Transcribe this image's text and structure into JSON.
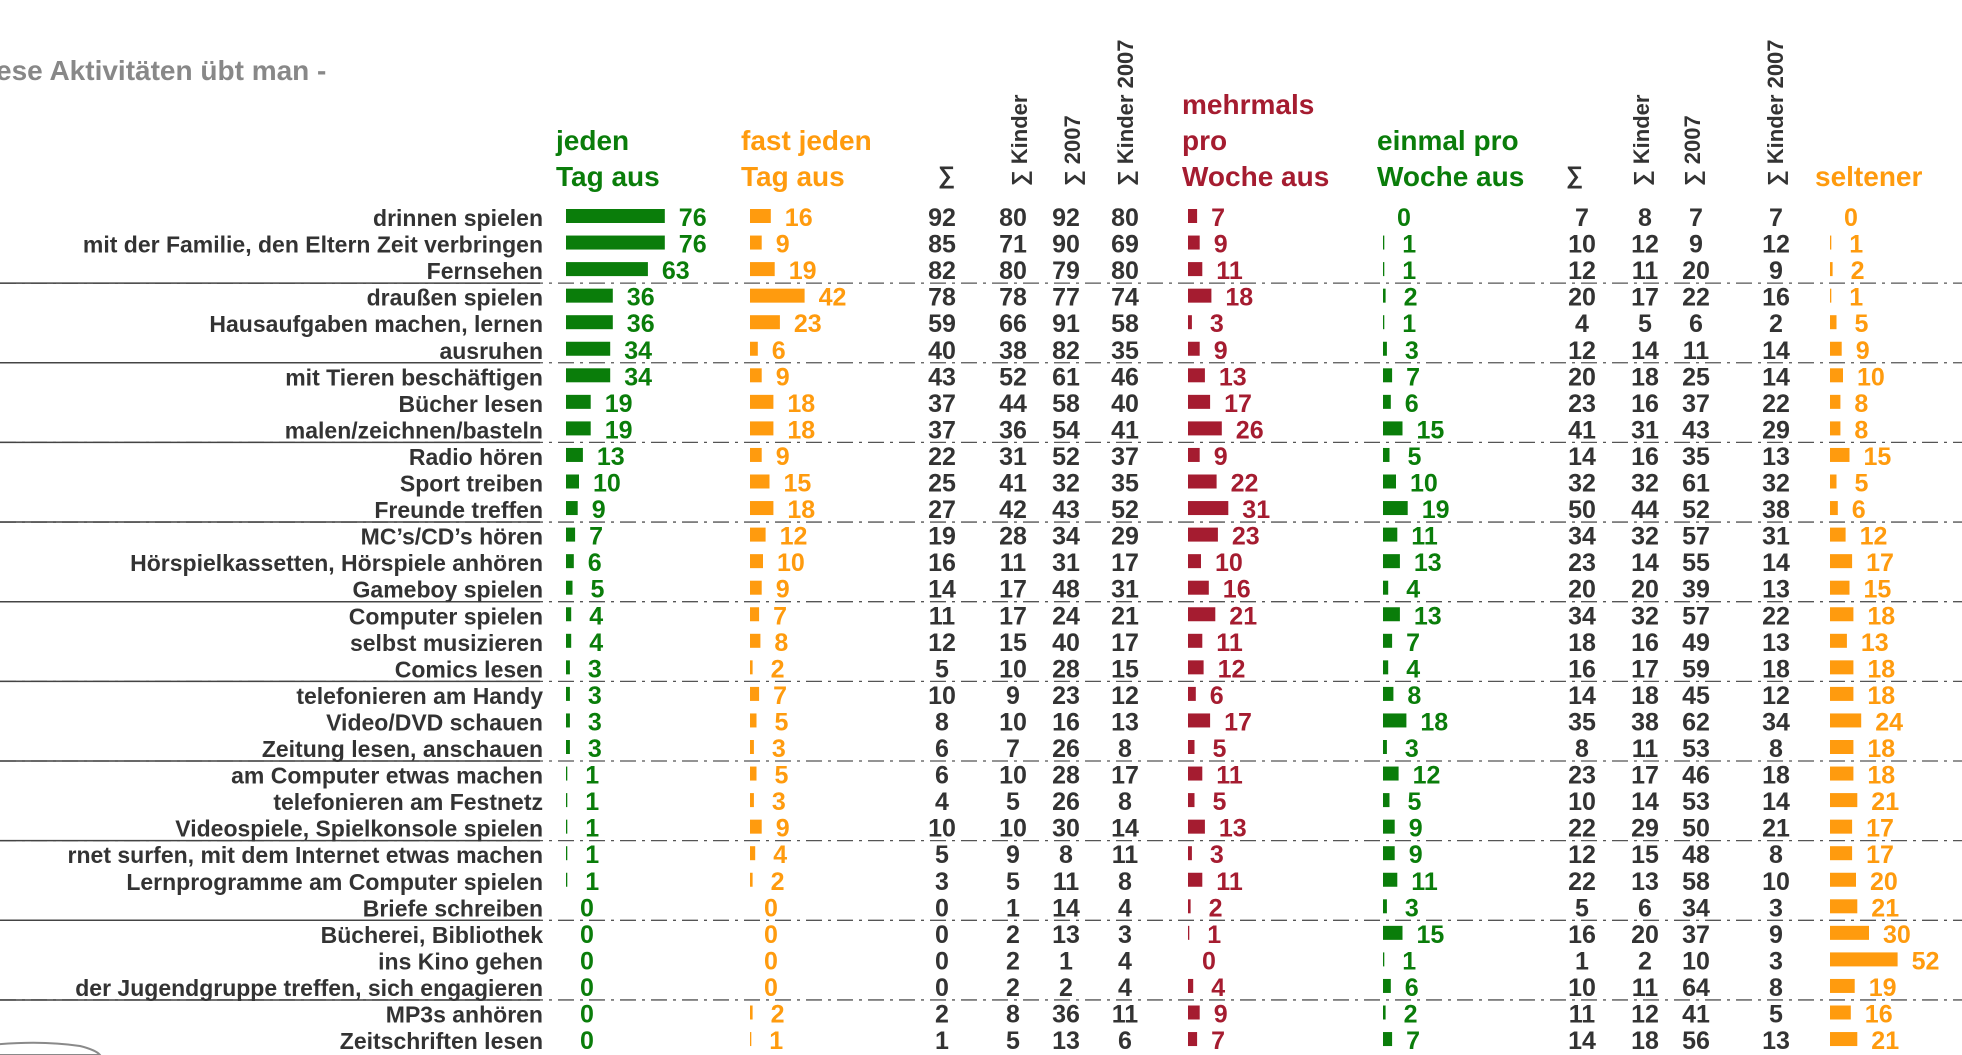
{
  "title": "ese Aktivitäten übt man -",
  "colors": {
    "green": "#0a7d0a",
    "orange": "#ff9b0e",
    "red": "#a51c30",
    "gray": "#333333",
    "title_gray": "#888888"
  },
  "headers": {
    "green1": [
      "jeden",
      "Tag aus"
    ],
    "orange1": [
      "fast jeden",
      "Tag aus"
    ],
    "sum1": "∑",
    "sum_kinder1": "∑ Kinder",
    "sum_2007_1": "∑ 2007",
    "sum_kinder2007_1": "∑ Kinder 2007",
    "red": [
      "mehrmals",
      "pro",
      "Woche aus"
    ],
    "green2": [
      "einmal pro",
      "Woche aus"
    ],
    "sum2": "∑",
    "sum_kinder2": "∑ Kinder",
    "sum_2007_2": "∑ 2007",
    "sum_kinder2007_2": "∑ Kinder 2007",
    "orange2": "seltener"
  },
  "chart_data": {
    "type": "bar",
    "underlined_rows": [
      2,
      5,
      8,
      11,
      14,
      17,
      20,
      23,
      26,
      29,
      32
    ],
    "rows": [
      {
        "label": "drinnen spielen",
        "daily": 76,
        "almost_daily": 16,
        "sum1": 92,
        "kinder1": 80,
        "y2007_1": 92,
        "kinder2007_1": 80,
        "several_weekly": 7,
        "once_weekly": 0,
        "sum2": 7,
        "kinder2": 8,
        "y2007_2": 7,
        "kinder2007_2": 7,
        "rarely": 0
      },
      {
        "label": "mit der Familie, den Eltern Zeit verbringen",
        "daily": 76,
        "almost_daily": 9,
        "sum1": 85,
        "kinder1": 71,
        "y2007_1": 90,
        "kinder2007_1": 69,
        "several_weekly": 9,
        "once_weekly": 1,
        "sum2": 10,
        "kinder2": 12,
        "y2007_2": 9,
        "kinder2007_2": 12,
        "rarely": 1
      },
      {
        "label": "Fernsehen",
        "daily": 63,
        "almost_daily": 19,
        "sum1": 82,
        "kinder1": 80,
        "y2007_1": 79,
        "kinder2007_1": 80,
        "several_weekly": 11,
        "once_weekly": 1,
        "sum2": 12,
        "kinder2": 11,
        "y2007_2": 20,
        "kinder2007_2": 9,
        "rarely": 2
      },
      {
        "label": "draußen spielen",
        "daily": 36,
        "almost_daily": 42,
        "sum1": 78,
        "kinder1": 78,
        "y2007_1": 77,
        "kinder2007_1": 74,
        "several_weekly": 18,
        "once_weekly": 2,
        "sum2": 20,
        "kinder2": 17,
        "y2007_2": 22,
        "kinder2007_2": 16,
        "rarely": 1
      },
      {
        "label": "Hausaufgaben machen, lernen",
        "daily": 36,
        "almost_daily": 23,
        "sum1": 59,
        "kinder1": 66,
        "y2007_1": 91,
        "kinder2007_1": 58,
        "several_weekly": 3,
        "once_weekly": 1,
        "sum2": 4,
        "kinder2": 5,
        "y2007_2": 6,
        "kinder2007_2": 2,
        "rarely": 5
      },
      {
        "label": "ausruhen",
        "daily": 34,
        "almost_daily": 6,
        "sum1": 40,
        "kinder1": 38,
        "y2007_1": 82,
        "kinder2007_1": 35,
        "several_weekly": 9,
        "once_weekly": 3,
        "sum2": 12,
        "kinder2": 14,
        "y2007_2": 11,
        "kinder2007_2": 14,
        "rarely": 9
      },
      {
        "label": "mit Tieren beschäftigen",
        "daily": 34,
        "almost_daily": 9,
        "sum1": 43,
        "kinder1": 52,
        "y2007_1": 61,
        "kinder2007_1": 46,
        "several_weekly": 13,
        "once_weekly": 7,
        "sum2": 20,
        "kinder2": 18,
        "y2007_2": 25,
        "kinder2007_2": 14,
        "rarely": 10
      },
      {
        "label": "Bücher lesen",
        "daily": 19,
        "almost_daily": 18,
        "sum1": 37,
        "kinder1": 44,
        "y2007_1": 58,
        "kinder2007_1": 40,
        "several_weekly": 17,
        "once_weekly": 6,
        "sum2": 23,
        "kinder2": 16,
        "y2007_2": 37,
        "kinder2007_2": 22,
        "rarely": 8
      },
      {
        "label": "malen/zeichnen/basteln",
        "daily": 19,
        "almost_daily": 18,
        "sum1": 37,
        "kinder1": 36,
        "y2007_1": 54,
        "kinder2007_1": 41,
        "several_weekly": 26,
        "once_weekly": 15,
        "sum2": 41,
        "kinder2": 31,
        "y2007_2": 43,
        "kinder2007_2": 29,
        "rarely": 8
      },
      {
        "label": "Radio hören",
        "daily": 13,
        "almost_daily": 9,
        "sum1": 22,
        "kinder1": 31,
        "y2007_1": 52,
        "kinder2007_1": 37,
        "several_weekly": 9,
        "once_weekly": 5,
        "sum2": 14,
        "kinder2": 16,
        "y2007_2": 35,
        "kinder2007_2": 13,
        "rarely": 15
      },
      {
        "label": "Sport treiben",
        "daily": 10,
        "almost_daily": 15,
        "sum1": 25,
        "kinder1": 41,
        "y2007_1": 32,
        "kinder2007_1": 35,
        "several_weekly": 22,
        "once_weekly": 10,
        "sum2": 32,
        "kinder2": 32,
        "y2007_2": 61,
        "kinder2007_2": 32,
        "rarely": 5
      },
      {
        "label": "Freunde treffen",
        "daily": 9,
        "almost_daily": 18,
        "sum1": 27,
        "kinder1": 42,
        "y2007_1": 43,
        "kinder2007_1": 52,
        "several_weekly": 31,
        "once_weekly": 19,
        "sum2": 50,
        "kinder2": 44,
        "y2007_2": 52,
        "kinder2007_2": 38,
        "rarely": 6
      },
      {
        "label": "MC’s/CD’s hören",
        "daily": 7,
        "almost_daily": 12,
        "sum1": 19,
        "kinder1": 28,
        "y2007_1": 34,
        "kinder2007_1": 29,
        "several_weekly": 23,
        "once_weekly": 11,
        "sum2": 34,
        "kinder2": 32,
        "y2007_2": 57,
        "kinder2007_2": 31,
        "rarely": 12
      },
      {
        "label": "Hörspielkassetten, Hörspiele anhören",
        "daily": 6,
        "almost_daily": 10,
        "sum1": 16,
        "kinder1": 11,
        "y2007_1": 31,
        "kinder2007_1": 17,
        "several_weekly": 10,
        "once_weekly": 13,
        "sum2": 23,
        "kinder2": 14,
        "y2007_2": 55,
        "kinder2007_2": 14,
        "rarely": 17
      },
      {
        "label": "Gameboy spielen",
        "daily": 5,
        "almost_daily": 9,
        "sum1": 14,
        "kinder1": 17,
        "y2007_1": 48,
        "kinder2007_1": 31,
        "several_weekly": 16,
        "once_weekly": 4,
        "sum2": 20,
        "kinder2": 20,
        "y2007_2": 39,
        "kinder2007_2": 13,
        "rarely": 15
      },
      {
        "label": "Computer spielen",
        "daily": 4,
        "almost_daily": 7,
        "sum1": 11,
        "kinder1": 17,
        "y2007_1": 24,
        "kinder2007_1": 21,
        "several_weekly": 21,
        "once_weekly": 13,
        "sum2": 34,
        "kinder2": 32,
        "y2007_2": 57,
        "kinder2007_2": 22,
        "rarely": 18
      },
      {
        "label": "selbst musizieren",
        "daily": 4,
        "almost_daily": 8,
        "sum1": 12,
        "kinder1": 15,
        "y2007_1": 40,
        "kinder2007_1": 17,
        "several_weekly": 11,
        "once_weekly": 7,
        "sum2": 18,
        "kinder2": 16,
        "y2007_2": 49,
        "kinder2007_2": 13,
        "rarely": 13
      },
      {
        "label": "Comics lesen",
        "daily": 3,
        "almost_daily": 2,
        "sum1": 5,
        "kinder1": 10,
        "y2007_1": 28,
        "kinder2007_1": 15,
        "several_weekly": 12,
        "once_weekly": 4,
        "sum2": 16,
        "kinder2": 17,
        "y2007_2": 59,
        "kinder2007_2": 18,
        "rarely": 18
      },
      {
        "label": "telefonieren am Handy",
        "daily": 3,
        "almost_daily": 7,
        "sum1": 10,
        "kinder1": 9,
        "y2007_1": 23,
        "kinder2007_1": 12,
        "several_weekly": 6,
        "once_weekly": 8,
        "sum2": 14,
        "kinder2": 18,
        "y2007_2": 45,
        "kinder2007_2": 12,
        "rarely": 18
      },
      {
        "label": "Video/DVD schauen",
        "daily": 3,
        "almost_daily": 5,
        "sum1": 8,
        "kinder1": 10,
        "y2007_1": 16,
        "kinder2007_1": 13,
        "several_weekly": 17,
        "once_weekly": 18,
        "sum2": 35,
        "kinder2": 38,
        "y2007_2": 62,
        "kinder2007_2": 34,
        "rarely": 24
      },
      {
        "label": "Zeitung lesen, anschauen",
        "daily": 3,
        "almost_daily": 3,
        "sum1": 6,
        "kinder1": 7,
        "y2007_1": 26,
        "kinder2007_1": 8,
        "several_weekly": 5,
        "once_weekly": 3,
        "sum2": 8,
        "kinder2": 11,
        "y2007_2": 53,
        "kinder2007_2": 8,
        "rarely": 18
      },
      {
        "label": "am Computer etwas machen",
        "daily": 1,
        "almost_daily": 5,
        "sum1": 6,
        "kinder1": 10,
        "y2007_1": 28,
        "kinder2007_1": 17,
        "several_weekly": 11,
        "once_weekly": 12,
        "sum2": 23,
        "kinder2": 17,
        "y2007_2": 46,
        "kinder2007_2": 18,
        "rarely": 18
      },
      {
        "label": "telefonieren am Festnetz",
        "daily": 1,
        "almost_daily": 3,
        "sum1": 4,
        "kinder1": 5,
        "y2007_1": 26,
        "kinder2007_1": 8,
        "several_weekly": 5,
        "once_weekly": 5,
        "sum2": 10,
        "kinder2": 14,
        "y2007_2": 53,
        "kinder2007_2": 14,
        "rarely": 21
      },
      {
        "label": "Videospiele, Spielkonsole spielen",
        "daily": 1,
        "almost_daily": 9,
        "sum1": 10,
        "kinder1": 10,
        "y2007_1": 30,
        "kinder2007_1": 14,
        "several_weekly": 13,
        "once_weekly": 9,
        "sum2": 22,
        "kinder2": 29,
        "y2007_2": 50,
        "kinder2007_2": 21,
        "rarely": 17
      },
      {
        "label": "rnet surfen, mit dem Internet etwas machen",
        "daily": 1,
        "almost_daily": 4,
        "sum1": 5,
        "kinder1": 9,
        "y2007_1": 8,
        "kinder2007_1": 11,
        "several_weekly": 3,
        "once_weekly": 9,
        "sum2": 12,
        "kinder2": 15,
        "y2007_2": 48,
        "kinder2007_2": 8,
        "rarely": 17
      },
      {
        "label": "Lernprogramme am Computer spielen",
        "daily": 1,
        "almost_daily": 2,
        "sum1": 3,
        "kinder1": 5,
        "y2007_1": 11,
        "kinder2007_1": 8,
        "several_weekly": 11,
        "once_weekly": 11,
        "sum2": 22,
        "kinder2": 13,
        "y2007_2": 58,
        "kinder2007_2": 10,
        "rarely": 20
      },
      {
        "label": "Briefe schreiben",
        "daily": 0,
        "almost_daily": 0,
        "sum1": 0,
        "kinder1": 1,
        "y2007_1": 14,
        "kinder2007_1": 4,
        "several_weekly": 2,
        "once_weekly": 3,
        "sum2": 5,
        "kinder2": 6,
        "y2007_2": 34,
        "kinder2007_2": 3,
        "rarely": 21
      },
      {
        "label": "Bücherei, Bibliothek",
        "daily": 0,
        "almost_daily": 0,
        "sum1": 0,
        "kinder1": 2,
        "y2007_1": 13,
        "kinder2007_1": 3,
        "several_weekly": 1,
        "once_weekly": 15,
        "sum2": 16,
        "kinder2": 20,
        "y2007_2": 37,
        "kinder2007_2": 9,
        "rarely": 30
      },
      {
        "label": "ins Kino gehen",
        "daily": 0,
        "almost_daily": 0,
        "sum1": 0,
        "kinder1": 2,
        "y2007_1": 1,
        "kinder2007_1": 4,
        "several_weekly": 0,
        "once_weekly": 1,
        "sum2": 1,
        "kinder2": 2,
        "y2007_2": 10,
        "kinder2007_2": 3,
        "rarely": 52
      },
      {
        "label": "der Jugendgruppe treffen, sich engagieren",
        "daily": 0,
        "almost_daily": 0,
        "sum1": 0,
        "kinder1": 2,
        "y2007_1": 2,
        "kinder2007_1": 4,
        "several_weekly": 4,
        "once_weekly": 6,
        "sum2": 10,
        "kinder2": 11,
        "y2007_2": 64,
        "kinder2007_2": 8,
        "rarely": 19
      },
      {
        "label": "MP3s anhören",
        "daily": 0,
        "almost_daily": 2,
        "sum1": 2,
        "kinder1": 8,
        "y2007_1": 36,
        "kinder2007_1": 11,
        "several_weekly": 9,
        "once_weekly": 2,
        "sum2": 11,
        "kinder2": 12,
        "y2007_2": 41,
        "kinder2007_2": 5,
        "rarely": 16
      },
      {
        "label": "Zeitschriften lesen",
        "daily": 0,
        "almost_daily": 1,
        "sum1": 1,
        "kinder1": 5,
        "y2007_1": 13,
        "kinder2007_1": 6,
        "several_weekly": 7,
        "once_weekly": 7,
        "sum2": 14,
        "kinder2": 18,
        "y2007_2": 56,
        "kinder2007_2": 13,
        "rarely": 21
      }
    ]
  }
}
